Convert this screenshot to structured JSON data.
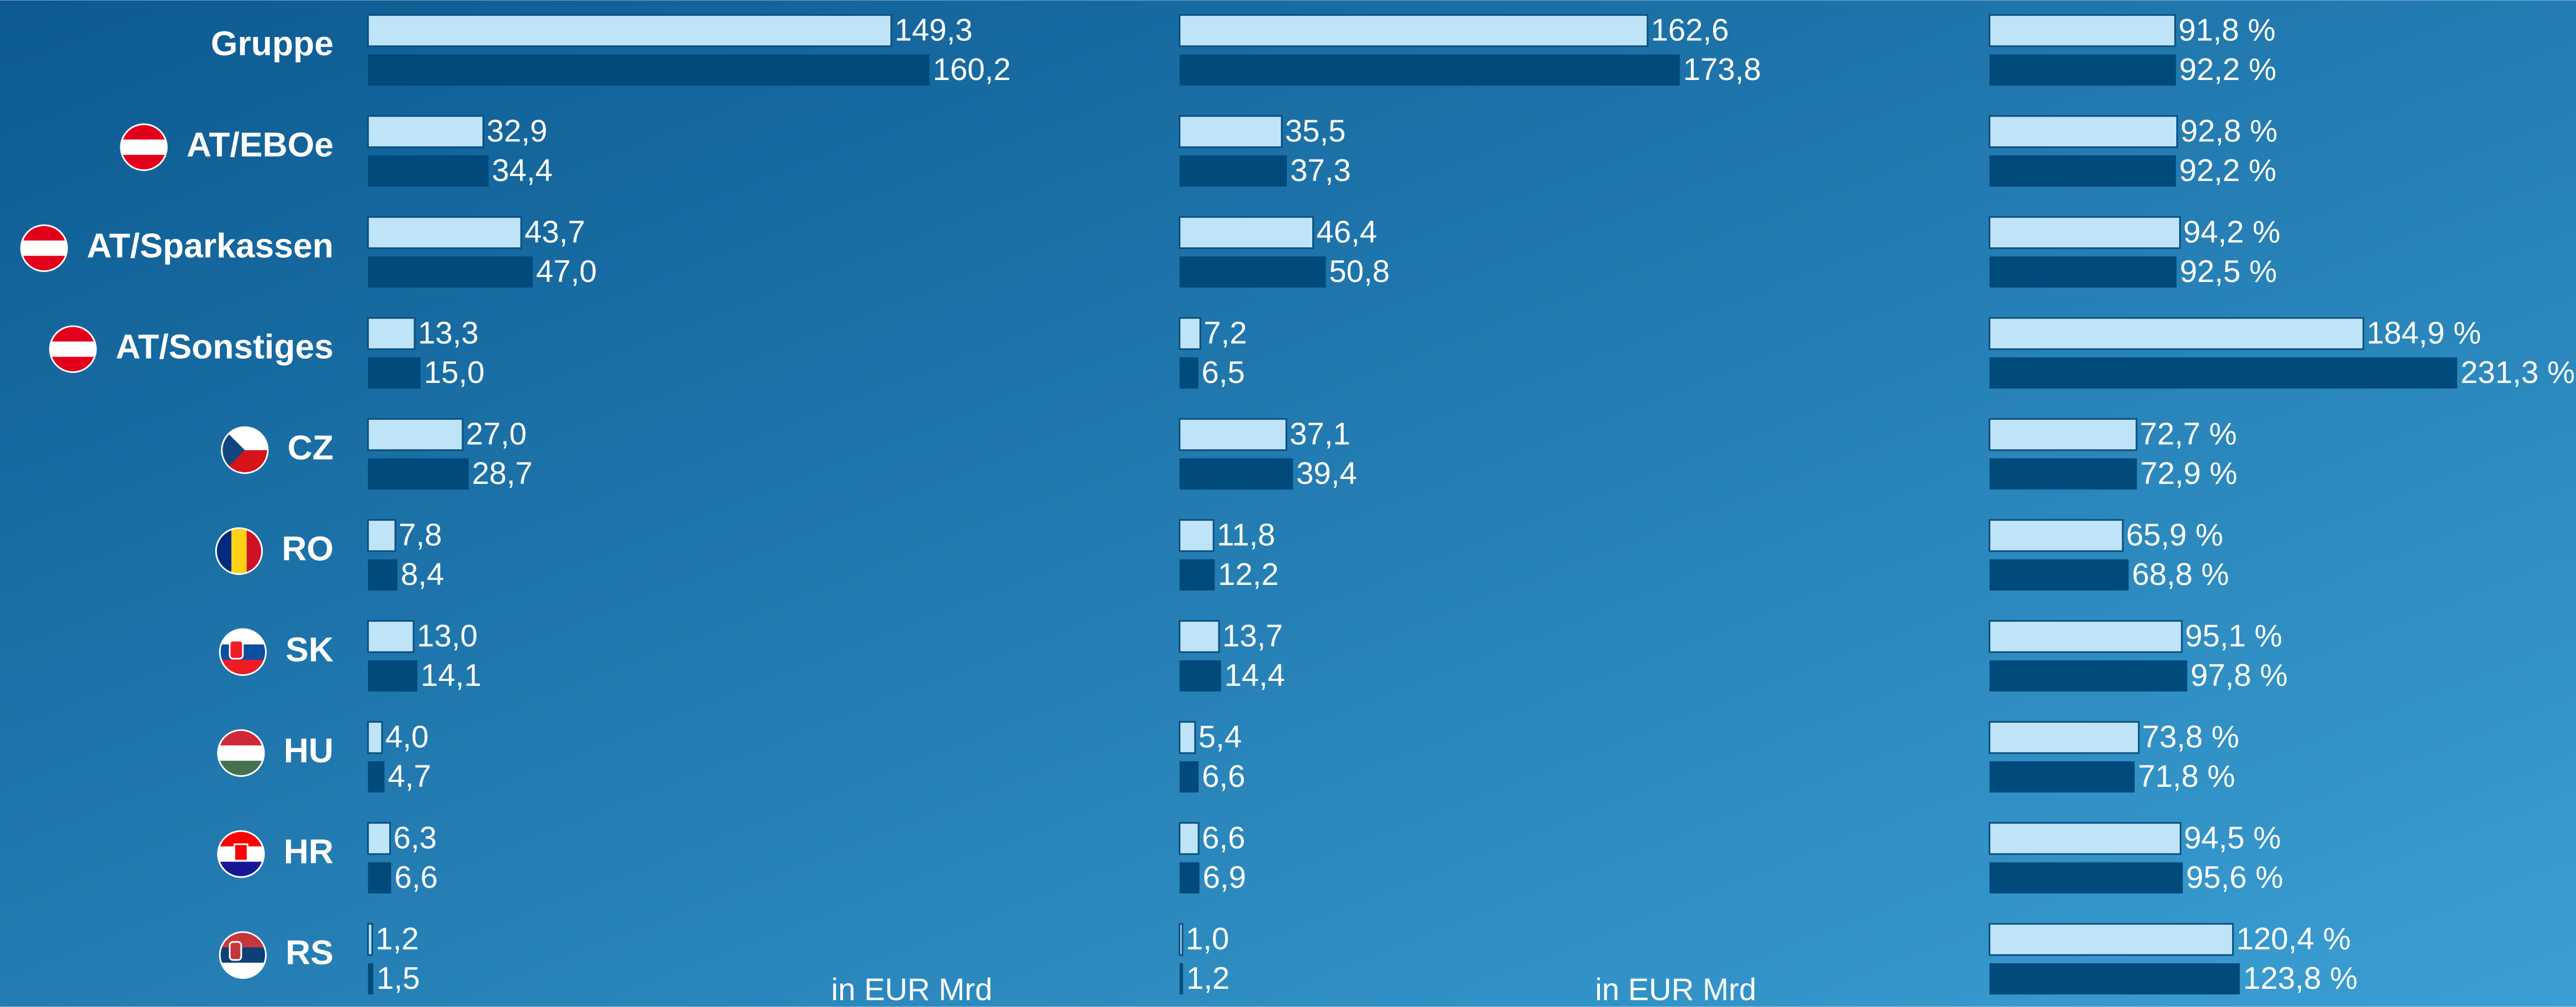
{
  "chart_data": [
    {
      "type": "bar",
      "orientation": "horizontal",
      "categories": [
        "Gruppe",
        "AT/EBOe",
        "AT/Sparkassen",
        "AT/Sonstiges",
        "CZ",
        "RO",
        "SK",
        "HU",
        "HR",
        "RS"
      ],
      "xlim": [
        0,
        225
      ],
      "x_label": "in EUR Mrd",
      "series": [
        {
          "color": "#bfe4f8",
          "values": [
            149.3,
            32.9,
            43.7,
            13.3,
            27.0,
            7.8,
            13.0,
            4.0,
            6.3,
            1.2
          ],
          "value_labels": [
            "149,3",
            "32,9",
            "43,7",
            "13,3",
            "27,0",
            "7,8",
            "13,0",
            "4,0",
            "6,3",
            "1,2"
          ]
        },
        {
          "color": "#004a7c",
          "values": [
            160.2,
            34.4,
            47.0,
            15.0,
            28.7,
            8.4,
            14.1,
            4.7,
            6.6,
            1.5
          ],
          "value_labels": [
            "160,2",
            "34,4",
            "47,0",
            "15,0",
            "28,7",
            "8,4",
            "14,1",
            "4,7",
            "6,6",
            "1,5"
          ]
        }
      ]
    },
    {
      "type": "bar",
      "orientation": "horizontal",
      "xlim": [
        0,
        274
      ],
      "x_label": "in EUR Mrd",
      "series": [
        {
          "color": "#bfe4f8",
          "values": [
            162.6,
            35.5,
            46.4,
            7.2,
            37.1,
            11.8,
            13.7,
            5.4,
            6.6,
            1.0
          ],
          "value_labels": [
            "162,6",
            "35,5",
            "46,4",
            "7,2",
            "37,1",
            "11,8",
            "13,7",
            "5,4",
            "6,6",
            "1,0"
          ]
        },
        {
          "color": "#004a7c",
          "values": [
            173.8,
            37.3,
            50.8,
            6.5,
            39.4,
            12.2,
            14.4,
            6.6,
            6.9,
            1.2
          ],
          "value_labels": [
            "173,8",
            "37,3",
            "50,8",
            "6,5",
            "39,4",
            "12,2",
            "14,4",
            "6,6",
            "6,9",
            "1,2"
          ]
        }
      ]
    },
    {
      "type": "bar",
      "orientation": "horizontal",
      "xlim": [
        0,
        390
      ],
      "series": [
        {
          "color": "#bfe4f8",
          "values": [
            91.8,
            92.8,
            94.2,
            184.9,
            72.7,
            65.9,
            95.1,
            73.8,
            94.5,
            120.4
          ],
          "value_labels": [
            "91,8 %",
            "92,8 %",
            "94,2 %",
            "184,9 %",
            "72,7 %",
            "65,9 %",
            "95,1 %",
            "73,8 %",
            "94,5 %",
            "120,4 %"
          ]
        },
        {
          "color": "#004a7c",
          "values": [
            92.2,
            92.2,
            92.5,
            231.3,
            72.9,
            68.8,
            97.8,
            71.8,
            95.6,
            123.8
          ],
          "value_labels": [
            "92,2 %",
            "92,2 %",
            "92,5 %",
            "231,3 %",
            "72,9 %",
            "68,8 %",
            "97,8 %",
            "71,8 %",
            "95,6 %",
            "123,8 %"
          ]
        }
      ]
    }
  ]
}
